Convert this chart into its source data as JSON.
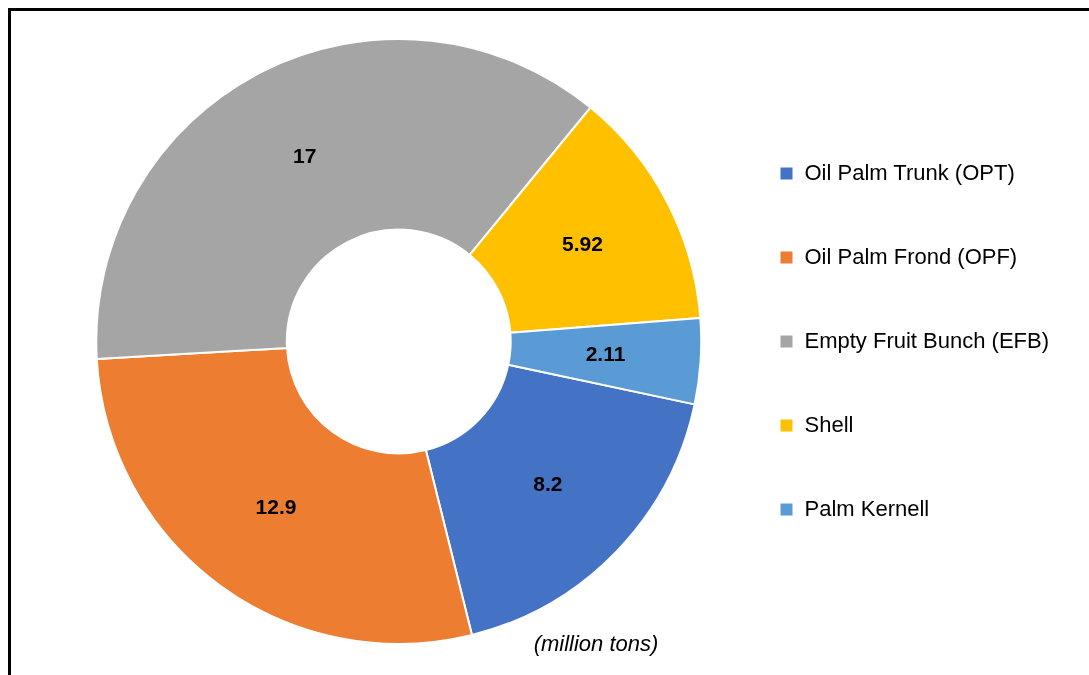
{
  "chart_data": {
    "type": "donut",
    "categories": [
      "Oil Palm Trunk (OPT)",
      "Oil Palm Frond (OPF)",
      "Empty Fruit Bunch (EFB)",
      "Shell",
      "Palm Kernell"
    ],
    "values": [
      8.2,
      12.9,
      17,
      5.92,
      2.11
    ],
    "colors": [
      "#4472c4",
      "#ed7d31",
      "#a5a5a5",
      "#ffc000",
      "#5b9bd5"
    ],
    "data_labels": true,
    "legend": "right",
    "annotations": [
      "(million tons)"
    ]
  }
}
